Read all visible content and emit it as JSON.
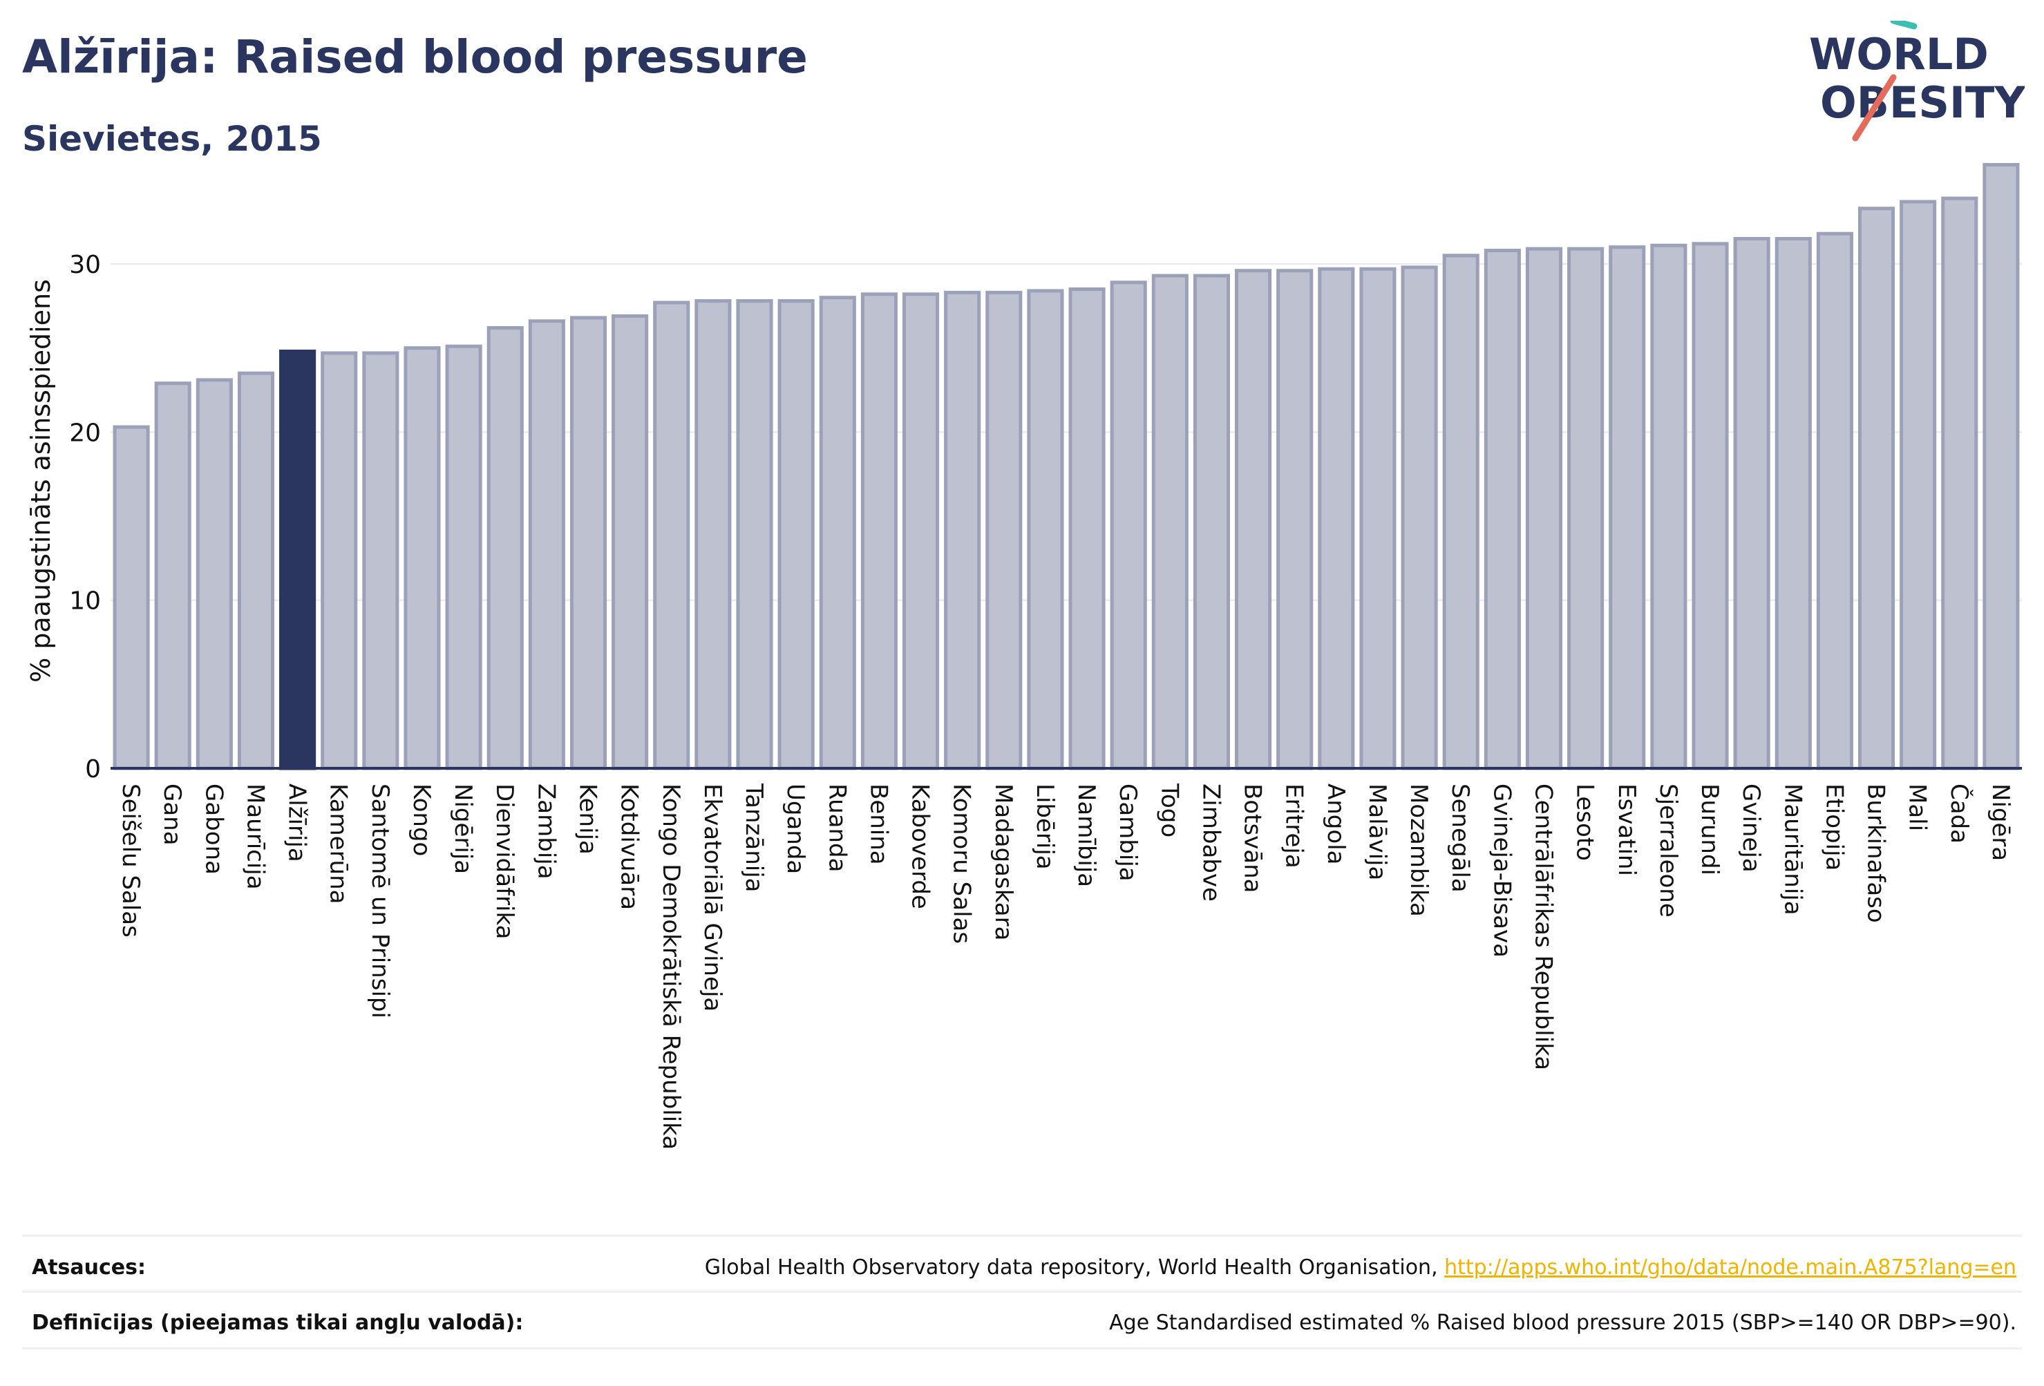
{
  "header": {
    "title": "Alžīrija: Raised blood pressure",
    "subtitle": "Sievietes, 2015"
  },
  "logo": {
    "line1": "WORLD",
    "line2": "OBESITY"
  },
  "colors": {
    "highlight_bar": "#2a3560",
    "bar_fill": "#bec2d0",
    "bar_stroke": "#9aa1b8",
    "text": "#2a3560",
    "link": "#f0b400",
    "logo_teal": "#3bbfb3",
    "logo_coral": "#e56b5a"
  },
  "chart_data": {
    "type": "bar",
    "ylabel": "% paaugstināts asinsspiediens",
    "xlabel": "",
    "ylim": [
      0,
      36
    ],
    "yticks": [
      0,
      10,
      20,
      30
    ],
    "grid": true,
    "highlight": "Alžīrija",
    "categories": [
      "Seišelu Salas",
      "Gana",
      "Gabona",
      "Maurīcija",
      "Alžīrija",
      "Kamerūna",
      "Santomē un Prinsipi",
      "Kongo",
      "Nigērija",
      "Dienvidāfrika",
      "Zambija",
      "Kenija",
      "Kotdivuāra",
      "Kongo Demokrātiskā Republika",
      "Ekvatoriālā Gvineja",
      "Tanzānija",
      "Uganda",
      "Ruanda",
      "Benina",
      "Kaboverde",
      "Komoru Salas",
      "Madagaskara",
      "Libērija",
      "Namībija",
      "Gambija",
      "Togo",
      "Zimbabve",
      "Botsvāna",
      "Eritreja",
      "Angola",
      "Malāvija",
      "Mozambika",
      "Senegāla",
      "Gvineja-Bisava",
      "Centrālāfrikas Republika",
      "Lesoto",
      "Esvatini",
      "Sjerraleone",
      "Burundi",
      "Gvineja",
      "Mauritānija",
      "Etiopija",
      "Burkinafaso",
      "Mali",
      "Čada",
      "Nigēra"
    ],
    "values": [
      20.3,
      22.9,
      23.1,
      23.5,
      24.8,
      24.7,
      24.7,
      25.0,
      25.1,
      26.2,
      26.6,
      26.8,
      26.9,
      27.7,
      27.8,
      27.8,
      27.8,
      28.0,
      28.2,
      28.2,
      28.3,
      28.3,
      28.4,
      28.5,
      28.9,
      29.3,
      29.3,
      29.6,
      29.6,
      29.7,
      29.7,
      29.8,
      30.5,
      30.8,
      30.9,
      30.9,
      31.0,
      31.1,
      31.2,
      31.5,
      31.5,
      31.8,
      33.3,
      33.7,
      33.9,
      35.9
    ]
  },
  "footer": {
    "sources_label": "Atsauces:",
    "sources_text": "Global Health Observatory data repository, World Health Organisation, ",
    "sources_link": "http://apps.who.int/gho/data/node.main.A875?lang=en",
    "definitions_label": "Definīcijas (pieejamas tikai angļu valodā):",
    "definitions_text": "Age Standardised estimated % Raised blood pressure 2015 (SBP>=140 OR DBP>=90)."
  }
}
